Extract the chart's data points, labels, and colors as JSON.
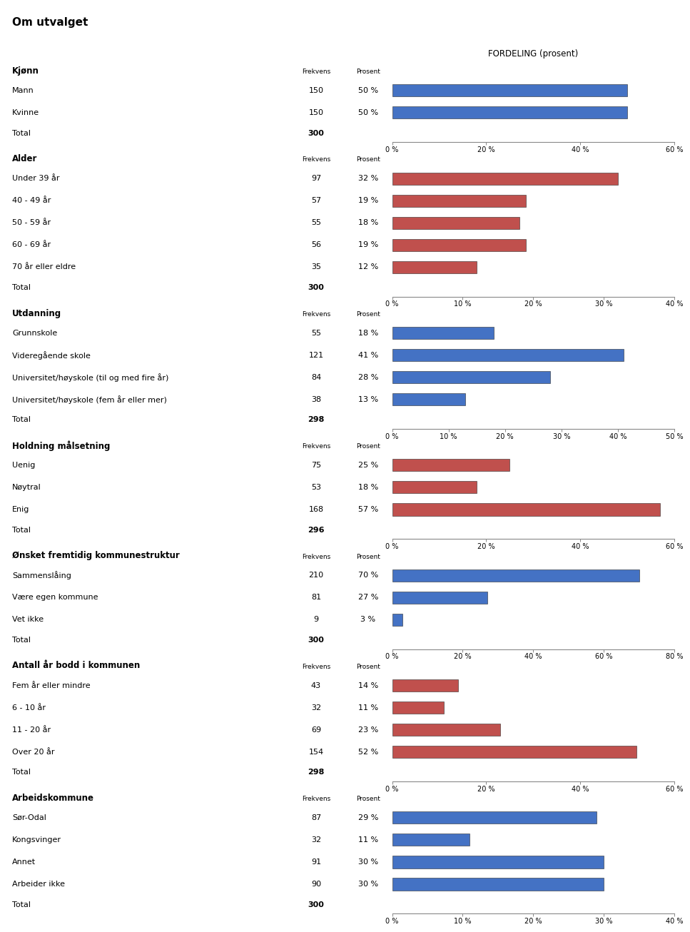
{
  "title": "Om utvalget",
  "fordeling_label": "FORDELING (prosent)",
  "sections": [
    {
      "header": "Kjønn",
      "color": "#4472C4",
      "rows": [
        {
          "label": "Mann",
          "frekvens": 150,
          "prosent": 50
        },
        {
          "label": "Kvinne",
          "frekvens": 150,
          "prosent": 50
        }
      ],
      "total": 300,
      "xlim": [
        0,
        60
      ],
      "xticks": [
        0,
        20,
        40,
        60
      ],
      "xtick_labels": [
        "0 %",
        "20 %",
        "40 %",
        "60 %"
      ]
    },
    {
      "header": "Alder",
      "color": "#C0504D",
      "rows": [
        {
          "label": "Under 39 år",
          "frekvens": 97,
          "prosent": 32
        },
        {
          "label": "40 - 49 år",
          "frekvens": 57,
          "prosent": 19
        },
        {
          "label": "50 - 59 år",
          "frekvens": 55,
          "prosent": 18
        },
        {
          "label": "60 - 69 år",
          "frekvens": 56,
          "prosent": 19
        },
        {
          "label": "70 år eller eldre",
          "frekvens": 35,
          "prosent": 12
        }
      ],
      "total": 300,
      "xlim": [
        0,
        40
      ],
      "xticks": [
        0,
        10,
        20,
        30,
        40
      ],
      "xtick_labels": [
        "0 %",
        "10 %",
        "20 %",
        "30 %",
        "40 %"
      ]
    },
    {
      "header": "Utdanning",
      "color": "#4472C4",
      "rows": [
        {
          "label": "Grunnskole",
          "frekvens": 55,
          "prosent": 18
        },
        {
          "label": "Videregående skole",
          "frekvens": 121,
          "prosent": 41
        },
        {
          "label": "Universitet/høyskole (til og med fire år)",
          "frekvens": 84,
          "prosent": 28
        },
        {
          "label": "Universitet/høyskole (fem år eller mer)",
          "frekvens": 38,
          "prosent": 13
        }
      ],
      "total": 298,
      "xlim": [
        0,
        50
      ],
      "xticks": [
        0,
        10,
        20,
        30,
        40,
        50
      ],
      "xtick_labels": [
        "0 %",
        "10 %",
        "20 %",
        "30 %",
        "40 %",
        "50 %"
      ]
    },
    {
      "header": "Holdning målsetning",
      "color": "#C0504D",
      "rows": [
        {
          "label": "Uenig",
          "frekvens": 75,
          "prosent": 25
        },
        {
          "label": "Nøytral",
          "frekvens": 53,
          "prosent": 18
        },
        {
          "label": "Enig",
          "frekvens": 168,
          "prosent": 57
        }
      ],
      "total": 296,
      "xlim": [
        0,
        60
      ],
      "xticks": [
        0,
        20,
        40,
        60
      ],
      "xtick_labels": [
        "0 %",
        "20 %",
        "40 %",
        "60 %"
      ]
    },
    {
      "header": "Ønsket fremtidig kommunestruktur",
      "color": "#4472C4",
      "rows": [
        {
          "label": "Sammenslåing",
          "frekvens": 210,
          "prosent": 70
        },
        {
          "label": "Være egen kommune",
          "frekvens": 81,
          "prosent": 27
        },
        {
          "label": "Vet ikke",
          "frekvens": 9,
          "prosent": 3
        }
      ],
      "total": 300,
      "xlim": [
        0,
        80
      ],
      "xticks": [
        0,
        20,
        40,
        60,
        80
      ],
      "xtick_labels": [
        "0 %",
        "20 %",
        "40 %",
        "60 %",
        "80 %"
      ]
    },
    {
      "header": "Antall år bodd i kommunen",
      "color": "#C0504D",
      "rows": [
        {
          "label": "Fem år eller mindre",
          "frekvens": 43,
          "prosent": 14
        },
        {
          "label": "6 - 10 år",
          "frekvens": 32,
          "prosent": 11
        },
        {
          "label": "11 - 20 år",
          "frekvens": 69,
          "prosent": 23
        },
        {
          "label": "Over 20 år",
          "frekvens": 154,
          "prosent": 52
        }
      ],
      "total": 298,
      "xlim": [
        0,
        60
      ],
      "xticks": [
        0,
        20,
        40,
        60
      ],
      "xtick_labels": [
        "0 %",
        "20 %",
        "40 %",
        "60 %"
      ]
    },
    {
      "header": "Arbeidskommune",
      "color": "#4472C4",
      "rows": [
        {
          "label": "Sør-Odal",
          "frekvens": 87,
          "prosent": 29
        },
        {
          "label": "Kongsvinger",
          "frekvens": 32,
          "prosent": 11
        },
        {
          "label": "Annet",
          "frekvens": 91,
          "prosent": 30
        },
        {
          "label": "Arbeider ikke",
          "frekvens": 90,
          "prosent": 30
        }
      ],
      "total": 300,
      "xlim": [
        0,
        40
      ],
      "xticks": [
        0,
        10,
        20,
        30,
        40
      ],
      "xtick_labels": [
        "0 %",
        "10 %",
        "20 %",
        "30 %",
        "40 %"
      ]
    }
  ],
  "bg_color": "#D9D9D9",
  "header_fontsize": 8.5,
  "label_fontsize": 8,
  "col_header_fontsize": 6.5,
  "tick_fontsize": 7,
  "frekvens_col_label": "Frekvens",
  "prosent_col_label": "Prosent",
  "title_fontsize": 11,
  "fordeling_fontsize": 8.5
}
